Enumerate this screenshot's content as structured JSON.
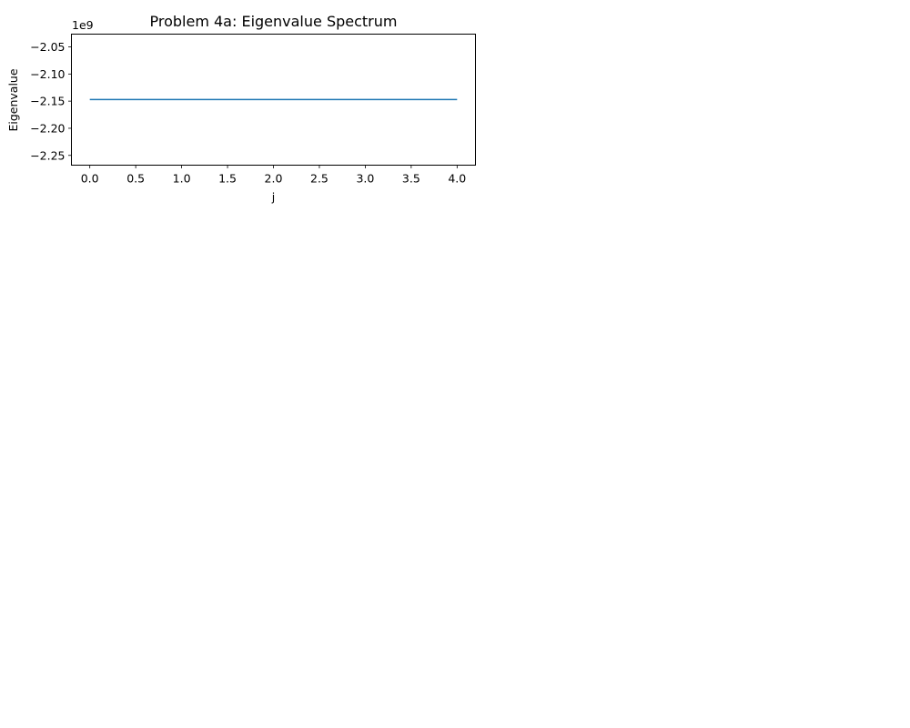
{
  "chart_data": {
    "type": "line",
    "title": "Problem 4a: Eigenvalue Spectrum",
    "xlabel": "j",
    "ylabel": "Eigenvalue",
    "y_offset_label": "1e9",
    "x": [
      0,
      1,
      2,
      3,
      4
    ],
    "series": [
      {
        "color": "#1f77b4",
        "values": [
          -2147000000.0,
          -2147000000.0,
          -2147000000.0,
          -2147000000.0,
          -2147000000.0
        ]
      }
    ],
    "xlim": [
      -0.2,
      4.2
    ],
    "ylim": [
      -2268000000.0,
      -2026500000.0
    ],
    "xticks": [
      0.0,
      0.5,
      1.0,
      1.5,
      2.0,
      2.5,
      3.0,
      3.5,
      4.0
    ],
    "xtick_labels": [
      "0.0",
      "0.5",
      "1.0",
      "1.5",
      "2.0",
      "2.5",
      "3.0",
      "3.5",
      "4.0"
    ],
    "yticks": [
      -2250000000.0,
      -2200000000.0,
      -2150000000.0,
      -2100000000.0,
      -2050000000.0
    ],
    "ytick_labels": [
      "−2.25",
      "−2.20",
      "−2.15",
      "−2.10",
      "−2.05"
    ],
    "grid": false,
    "legend": false
  }
}
